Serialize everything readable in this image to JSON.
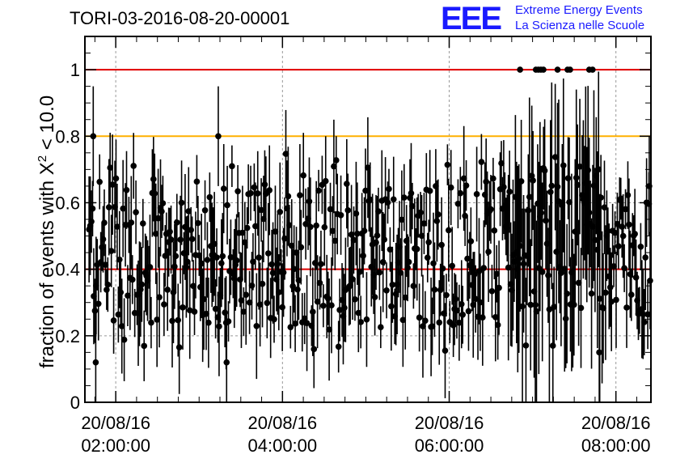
{
  "title": "TORI-03-2016-08-20-00001",
  "logo": {
    "mark": "EEE",
    "line1": "Extreme Energy Events",
    "line2": "La Scienza nelle Scuole",
    "color": "#1a1aff"
  },
  "chart_data": {
    "type": "scatter",
    "ylabel_prefix": "fraction of events with ",
    "ylabel_symbol": "X",
    "ylabel_superscript": "2",
    "ylabel_suffix": " < 10.0",
    "xlabel": "",
    "ylim": [
      0,
      1.1
    ],
    "xlim": [
      1.63,
      8.42
    ],
    "x_units": "hours on 20/08/16",
    "y_ticks": [
      {
        "value": 0,
        "label": "0"
      },
      {
        "value": 0.2,
        "label": "0.2"
      },
      {
        "value": 0.4,
        "label": "0.4"
      },
      {
        "value": 0.6,
        "label": "0.6"
      },
      {
        "value": 0.8,
        "label": "0.8"
      },
      {
        "value": 1.0,
        "label": "1"
      }
    ],
    "x_ticks": [
      {
        "value": 2,
        "date": "20/08/16",
        "time": "02:00:00"
      },
      {
        "value": 4,
        "date": "20/08/16",
        "time": "04:00:00"
      },
      {
        "value": 6,
        "date": "20/08/16",
        "time": "06:00:00"
      },
      {
        "value": 8,
        "date": "20/08/16",
        "time": "08:00:00"
      }
    ],
    "grid": true,
    "reference_lines": [
      {
        "y": 1.0,
        "color": "#e00000"
      },
      {
        "y": 0.8,
        "color": "#ffb000"
      },
      {
        "y": 0.4,
        "color": "#e00000"
      }
    ],
    "marker_color": "#000000",
    "n_points": 480,
    "series_note": "per-interval fraction values with error bars; typical range 0.2-0.7, saturating at 1.0 near 07:00-07:40",
    "highlight_points": [
      {
        "x": 1.73,
        "y": 0.8
      },
      {
        "x": 1.76,
        "y": 0.12
      },
      {
        "x": 3.23,
        "y": 0.8
      },
      {
        "x": 3.33,
        "y": 0.12
      },
      {
        "x": 6.85,
        "y": 1.0
      },
      {
        "x": 7.04,
        "y": 1.0
      },
      {
        "x": 7.07,
        "y": 1.0
      },
      {
        "x": 7.1,
        "y": 1.0
      },
      {
        "x": 7.13,
        "y": 1.0
      },
      {
        "x": 7.3,
        "y": 1.0
      },
      {
        "x": 7.42,
        "y": 1.0
      },
      {
        "x": 7.45,
        "y": 1.0
      },
      {
        "x": 7.68,
        "y": 1.0
      },
      {
        "x": 7.72,
        "y": 1.0
      },
      {
        "x": 7.8,
        "y": 0.15
      },
      {
        "x": 8.4,
        "y": 0.65
      }
    ]
  }
}
